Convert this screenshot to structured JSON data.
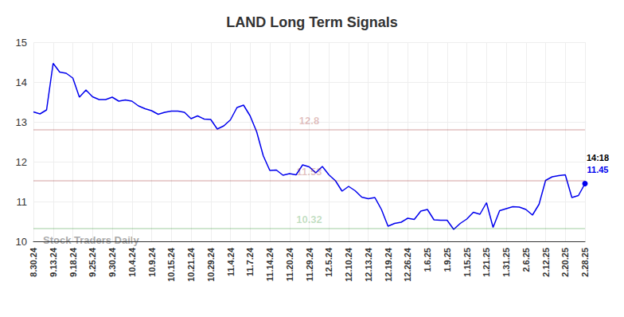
{
  "chart_data": {
    "type": "line",
    "title": "LAND Long Term Signals",
    "categories": [
      "8.30.24",
      null,
      null,
      "9.13.24",
      null,
      null,
      "9.18.24",
      null,
      null,
      "9.25.24",
      null,
      null,
      "9.30.24",
      null,
      null,
      "10.4.24",
      null,
      null,
      "10.9.24",
      null,
      null,
      "10.15.24",
      null,
      null,
      "10.21.24",
      null,
      null,
      "10.29.24",
      null,
      null,
      "11.4.24",
      null,
      null,
      "11.7.24",
      null,
      null,
      "11.14.24",
      null,
      null,
      "11.20.24",
      null,
      null,
      "11.29.24",
      null,
      null,
      "12.5.24",
      null,
      null,
      "12.10.24",
      null,
      null,
      "12.13.24",
      null,
      null,
      "12.19.24",
      null,
      null,
      "12.26.24",
      null,
      null,
      "1.6.25",
      null,
      null,
      "1.9.25",
      null,
      null,
      "1.15.25",
      null,
      null,
      "1.21.25",
      null,
      null,
      "1.31.25",
      null,
      null,
      "2.6.25",
      null,
      null,
      "2.12.25",
      null,
      null,
      "2.20.25",
      null,
      null,
      "2.28.25"
    ],
    "values": [
      13.25,
      13.2,
      13.3,
      14.47,
      14.25,
      14.22,
      14.1,
      13.62,
      13.8,
      13.63,
      13.56,
      13.56,
      13.62,
      13.52,
      13.55,
      13.52,
      13.4,
      13.33,
      13.28,
      13.19,
      13.24,
      13.27,
      13.27,
      13.24,
      13.08,
      13.15,
      13.07,
      13.06,
      12.82,
      12.9,
      13.05,
      13.36,
      13.42,
      13.15,
      12.75,
      12.15,
      11.78,
      11.79,
      11.66,
      11.7,
      11.67,
      11.92,
      11.87,
      11.72,
      11.88,
      11.67,
      11.52,
      11.26,
      11.38,
      11.27,
      11.11,
      11.07,
      11.1,
      10.8,
      10.38,
      10.45,
      10.48,
      10.58,
      10.55,
      10.76,
      10.8,
      10.54,
      10.53,
      10.53,
      10.3,
      10.45,
      10.56,
      10.73,
      10.68,
      10.97,
      10.35,
      10.77,
      10.82,
      10.87,
      10.86,
      10.8,
      10.66,
      10.93,
      11.53,
      11.62,
      11.65,
      11.67,
      11.1,
      11.15,
      11.45
    ],
    "color": "#0000ee",
    "ylim": [
      10,
      15
    ],
    "yticks": [
      10,
      11,
      12,
      13,
      14,
      15
    ],
    "grid": true,
    "signal_lines": [
      {
        "value": 12.8,
        "color": "#8b0000"
      },
      {
        "value": 11.53,
        "color": "#8b0000"
      },
      {
        "value": 10.32,
        "color": "#007a00"
      }
    ],
    "last_time": "14:18",
    "watermark": "Stock Traders Daily"
  }
}
